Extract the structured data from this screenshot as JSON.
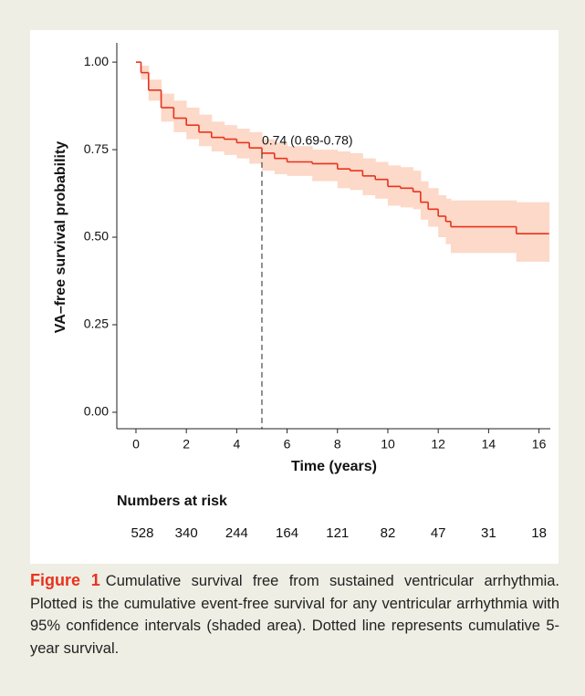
{
  "chart_data": {
    "type": "step",
    "y_label": "VA–free survival probability",
    "x_label": "Time (years)",
    "x": [
      0,
      0.2,
      0.5,
      1,
      1.5,
      2,
      2.5,
      3,
      3.5,
      4,
      4.5,
      5,
      5.5,
      6,
      7,
      8,
      8.5,
      9,
      9.5,
      10,
      10.5,
      11,
      11.3,
      11.6,
      12,
      12.3,
      12.5,
      15.1,
      16.4
    ],
    "series": [
      {
        "color": "#e8321e",
        "values": [
          1.0,
          0.97,
          0.92,
          0.87,
          0.84,
          0.82,
          0.8,
          0.785,
          0.78,
          0.77,
          0.755,
          0.74,
          0.725,
          0.715,
          0.71,
          0.695,
          0.69,
          0.675,
          0.665,
          0.645,
          0.64,
          0.63,
          0.6,
          0.58,
          0.56,
          0.545,
          0.53,
          0.51,
          0.51
        ],
        "lower": [
          1.0,
          0.95,
          0.89,
          0.83,
          0.8,
          0.78,
          0.76,
          0.745,
          0.735,
          0.725,
          0.71,
          0.69,
          0.68,
          0.675,
          0.66,
          0.64,
          0.635,
          0.62,
          0.61,
          0.59,
          0.585,
          0.58,
          0.55,
          0.53,
          0.5,
          0.48,
          0.455,
          0.43,
          0.43
        ],
        "upper": [
          1.0,
          0.99,
          0.95,
          0.91,
          0.89,
          0.87,
          0.85,
          0.83,
          0.82,
          0.81,
          0.8,
          0.78,
          0.77,
          0.76,
          0.75,
          0.745,
          0.74,
          0.725,
          0.715,
          0.705,
          0.7,
          0.69,
          0.66,
          0.64,
          0.62,
          0.61,
          0.605,
          0.6,
          0.6
        ],
        "band_color": "#fcd9c8"
      }
    ],
    "xlim": [
      -0.76,
      16.45
    ],
    "ylim": [
      -0.047,
      1.055
    ],
    "xticks": [
      0,
      2,
      4,
      6,
      8,
      10,
      12,
      14,
      16
    ],
    "yticks": [
      {
        "value": 0,
        "label": "0.00"
      },
      0.25,
      {
        "value": 0.5,
        "label": "0.50"
      },
      0.75,
      {
        "value": 1,
        "label": "1.00"
      }
    ],
    "annotation": {
      "text": "0.74 (0.69-0.78)",
      "x": 5,
      "y": 0.74
    },
    "risk_table": {
      "title": "Numbers at risk",
      "values": [
        528,
        340,
        244,
        164,
        121,
        82,
        47,
        31,
        18
      ]
    }
  },
  "caption": {
    "label": "Figure 1",
    "text": "Cumulative survival free from sustained ventricular arrhythmia. Plotted is the cumulative event-free survival for any ventricular arrhythmia with 95% confidence intervals (shaded area). Dotted line represents cumulative 5-year survival."
  }
}
